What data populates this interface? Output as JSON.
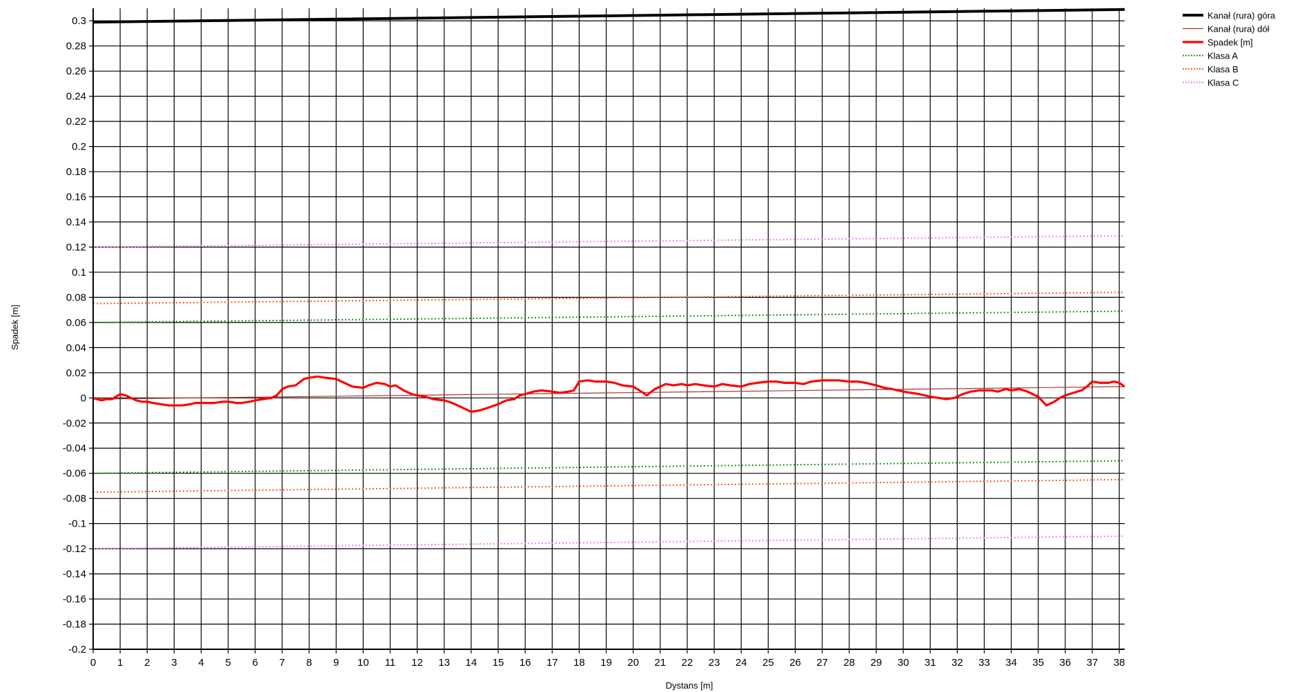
{
  "chart_data": {
    "type": "line",
    "title": "",
    "xlabel": "Dystans [m]",
    "ylabel": "Spadek [m]",
    "xlim": [
      0,
      38.2
    ],
    "ylim": [
      -0.2,
      0.31
    ],
    "x_ticks": [
      0,
      1,
      2,
      3,
      4,
      5,
      6,
      7,
      8,
      9,
      10,
      11,
      12,
      13,
      14,
      15,
      16,
      17,
      18,
      19,
      20,
      21,
      22,
      23,
      24,
      25,
      26,
      27,
      28,
      29,
      30,
      31,
      32,
      33,
      34,
      35,
      36,
      37,
      38
    ],
    "y_ticks": [
      0.3,
      0.28,
      0.26,
      0.24,
      0.22,
      0.2,
      0.18,
      0.16,
      0.14,
      0.12,
      0.1,
      0.08,
      0.06,
      0.04,
      0.02,
      0,
      -0.02,
      -0.04,
      -0.06,
      -0.08,
      -0.1,
      -0.12,
      -0.14,
      -0.16,
      -0.18,
      -0.2
    ],
    "y_tick_labels": [
      "0.3",
      "0.28",
      "0.26",
      "0.24",
      "0.22",
      "0.2",
      "0.18",
      "0.16",
      "0.14",
      "0.12",
      "0.1",
      "0.08",
      "0.06",
      "0.04",
      "0.02",
      "0",
      "-0.02",
      "-0.04",
      "-0.06",
      "-0.08",
      "-0.1",
      "-0.12",
      "-0.14",
      "-0.16",
      "-0.18",
      "-0.2"
    ],
    "grid": true,
    "legend_position": "top-right",
    "series": [
      {
        "name": "Kanał (rura) góra",
        "color": "#000000",
        "style": "solid",
        "width": 4,
        "x": [
          0,
          38.2
        ],
        "y": [
          0.299,
          0.309
        ]
      },
      {
        "name": "Kanał (rura) dół",
        "color": "#b03030",
        "style": "solid",
        "width": 1.2,
        "x": [
          0,
          38.2
        ],
        "y": [
          -0.001,
          0.009
        ]
      },
      {
        "name": "Spadek [m]",
        "color": "#ff0000",
        "style": "solid",
        "width": 3.2,
        "x": [
          0,
          0.3,
          0.5,
          0.7,
          1,
          1.2,
          1.4,
          1.6,
          1.8,
          2,
          2.2,
          2.5,
          2.8,
          3,
          3.3,
          3.6,
          3.8,
          4,
          4.2,
          4.5,
          4.8,
          5,
          5.3,
          5.5,
          5.8,
          6,
          6.3,
          6.6,
          6.8,
          7,
          7.2,
          7.5,
          7.8,
          8,
          8.3,
          8.6,
          9,
          9.3,
          9.6,
          10,
          10.2,
          10.5,
          10.8,
          11,
          11.2,
          11.5,
          11.8,
          12,
          12.3,
          12.6,
          13,
          13.3,
          13.6,
          14,
          14.3,
          14.6,
          15,
          15.3,
          15.6,
          15.8,
          16,
          16.3,
          16.6,
          17,
          17.3,
          17.6,
          17.8,
          18,
          18.3,
          18.6,
          19,
          19.3,
          19.6,
          20,
          20.3,
          20.5,
          20.8,
          21,
          21.2,
          21.5,
          21.8,
          22,
          22.3,
          22.6,
          23,
          23.3,
          23.6,
          24,
          24.3,
          24.6,
          25,
          25.3,
          25.6,
          26,
          26.3,
          26.6,
          27,
          27.3,
          27.6,
          28,
          28.3,
          28.6,
          29,
          29.3,
          29.6,
          30,
          30.3,
          30.6,
          31,
          31.3,
          31.6,
          31.9,
          32.2,
          32.5,
          32.8,
          33,
          33.3,
          33.5,
          33.8,
          34,
          34.3,
          34.6,
          35,
          35.3,
          35.6,
          35.8,
          36,
          36.3,
          36.6,
          36.8,
          37,
          37.3,
          37.6,
          37.8,
          38,
          38.2
        ],
        "y": [
          0,
          -0.002,
          -0.001,
          -0.001,
          0.003,
          0.002,
          0,
          -0.002,
          -0.003,
          -0.003,
          -0.004,
          -0.005,
          -0.006,
          -0.006,
          -0.006,
          -0.005,
          -0.004,
          -0.004,
          -0.004,
          -0.004,
          -0.003,
          -0.003,
          -0.004,
          -0.004,
          -0.003,
          -0.002,
          -0.001,
          0,
          0.002,
          0.007,
          0.009,
          0.01,
          0.015,
          0.016,
          0.017,
          0.016,
          0.015,
          0.012,
          0.009,
          0.008,
          0.01,
          0.012,
          0.011,
          0.009,
          0.01,
          0.006,
          0.003,
          0.002,
          0.001,
          -0.001,
          -0.002,
          -0.004,
          -0.007,
          -0.011,
          -0.01,
          -0.008,
          -0.005,
          -0.002,
          -0.001,
          0.002,
          0.003,
          0.005,
          0.006,
          0.005,
          0.004,
          0.005,
          0.006,
          0.013,
          0.014,
          0.013,
          0.013,
          0.012,
          0.01,
          0.009,
          0.005,
          0.002,
          0.007,
          0.009,
          0.011,
          0.01,
          0.011,
          0.01,
          0.011,
          0.01,
          0.009,
          0.011,
          0.01,
          0.009,
          0.011,
          0.012,
          0.013,
          0.013,
          0.012,
          0.012,
          0.011,
          0.013,
          0.014,
          0.014,
          0.014,
          0.013,
          0.013,
          0.012,
          0.01,
          0.008,
          0.007,
          0.005,
          0.004,
          0.003,
          0.001,
          0,
          -0.001,
          0,
          0.003,
          0.005,
          0.006,
          0.006,
          0.006,
          0.005,
          0.007,
          0.006,
          0.007,
          0.005,
          0.001,
          -0.006,
          -0.003,
          0,
          0.002,
          0.004,
          0.006,
          0.009,
          0.013,
          0.012,
          0.012,
          0.013,
          0.012,
          0.009
        ]
      },
      {
        "name": "Klasa A",
        "color": "#1f8f1f",
        "style": "dotted",
        "width": 2,
        "x": [
          0,
          38.2
        ],
        "y": [
          0.06,
          0.069
        ],
        "x2": [
          0,
          38.2
        ],
        "y2": [
          -0.06,
          -0.05
        ]
      },
      {
        "name": "Klasa B",
        "color": "#ff5a1a",
        "style": "dotted",
        "width": 2,
        "x": [
          0,
          38.2
        ],
        "y": [
          0.075,
          0.084
        ],
        "x2": [
          0,
          38.2
        ],
        "y2": [
          -0.075,
          -0.065
        ]
      },
      {
        "name": "Klasa C",
        "color": "#ee82ee",
        "style": "dotted",
        "width": 2,
        "x": [
          0,
          38.2
        ],
        "y": [
          0.12,
          0.129
        ],
        "x2": [
          0,
          38.2
        ],
        "y2": [
          -0.12,
          -0.11
        ]
      }
    ]
  }
}
